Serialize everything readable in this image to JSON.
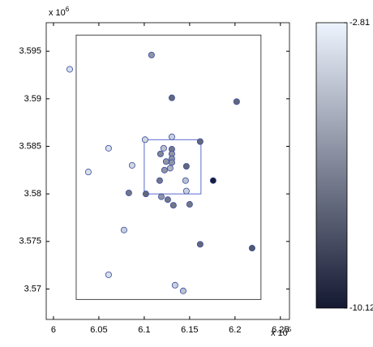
{
  "chart_data": {
    "type": "scatter",
    "x": [
      6.0179,
      6.108,
      6.1304,
      6.2018,
      6.0607,
      6.1009,
      6.1304,
      6.1616,
      6.0384,
      6.0866,
      6.1214,
      6.1304,
      6.1304,
      6.1304,
      6.1304,
      6.1179,
      6.1241,
      6.1286,
      6.1464,
      6.1223,
      6.117,
      6.1455,
      6.1759,
      6.083,
      6.1018,
      6.1464,
      6.1188,
      6.1259,
      6.1321,
      6.15,
      6.1616,
      6.0777,
      6.2188,
      6.0607,
      6.1339,
      6.1429
    ],
    "y": [
      3.5931,
      3.5946,
      3.5901,
      3.5897,
      3.5848,
      3.5857,
      3.586,
      3.5855,
      3.5823,
      3.583,
      3.5848,
      3.5847,
      3.5842,
      3.5837,
      3.5833,
      3.5842,
      3.5834,
      3.5827,
      3.5829,
      3.5825,
      3.5814,
      3.5814,
      3.5814,
      3.5801,
      3.58,
      3.5803,
      3.5797,
      3.5794,
      3.5788,
      3.5789,
      3.5747,
      3.5762,
      3.5743,
      3.5715,
      3.5704,
      3.5698
    ],
    "color_values": [
      -3.5,
      -6,
      -7.5,
      -7.5,
      -3.5,
      -3.8,
      -4,
      -7.5,
      -3.5,
      -3.8,
      -4.5,
      -7,
      -6,
      -6,
      -6,
      -6.5,
      -6,
      -5,
      -7.5,
      -6,
      -7,
      -4.5,
      -10,
      -7,
      -7.5,
      -4,
      -6,
      -7,
      -7,
      -7,
      -7.5,
      -4,
      -8,
      -3.5,
      -4,
      -4.5
    ],
    "xlim": [
      5.992,
      6.26
    ],
    "ylim": [
      3.5668,
      3.598
    ],
    "xticks": [
      6,
      6.05,
      6.1,
      6.15,
      6.2,
      6.25
    ],
    "yticks": [
      3.57,
      3.575,
      3.58,
      3.585,
      3.59,
      3.595
    ],
    "x_multiplier": {
      "base": "x 10",
      "exponent": "5"
    },
    "y_multiplier": {
      "base": "x 10",
      "exponent": "6"
    },
    "boxes": [
      {
        "xlim": [
          6.025,
          6.2286
        ],
        "ylim": [
          3.5689,
          3.5967
        ],
        "color": "#333333"
      },
      {
        "xlim": [
          6.1,
          6.1625
        ],
        "ylim": [
          3.58,
          3.5857
        ],
        "color": "#4a5ac8"
      }
    ],
    "marker_edge_color": "#3a4aa0",
    "colorbar": {
      "clim": [
        -10.12,
        -2.81
      ],
      "ticks": [
        -10.12,
        -2.81
      ]
    }
  }
}
